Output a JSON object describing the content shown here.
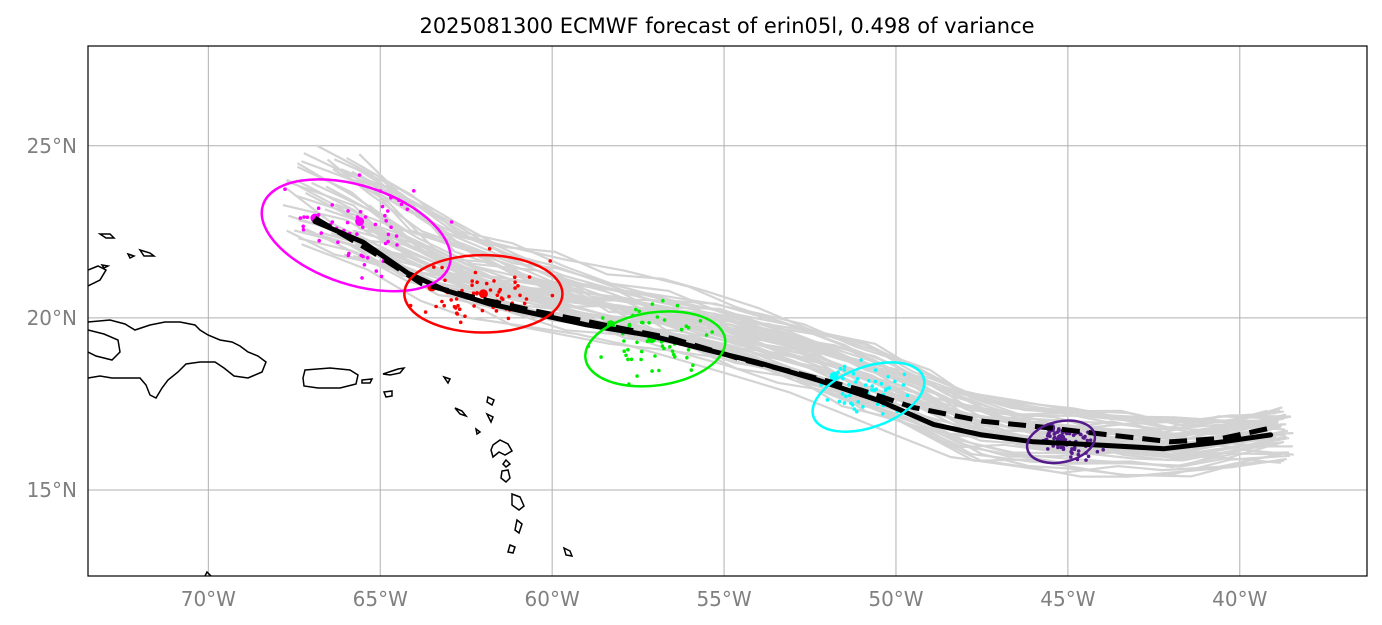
{
  "title": "2025081300 ECMWF forecast of erin05l, 0.498 of variance",
  "map": {
    "lon_range": [
      -73.5,
      -36.3
    ],
    "lat_range": [
      12.5,
      27.9
    ],
    "grid": true,
    "x_ticks": [
      {
        "lon": -70,
        "label": "70°W"
      },
      {
        "lon": -65,
        "label": "65°W"
      },
      {
        "lon": -60,
        "label": "60°W"
      },
      {
        "lon": -55,
        "label": "55°W"
      },
      {
        "lon": -50,
        "label": "50°W"
      },
      {
        "lon": -45,
        "label": "45°W"
      },
      {
        "lon": -40,
        "label": "40°W"
      }
    ],
    "y_ticks": [
      {
        "lat": 15,
        "label": "15°N"
      },
      {
        "lat": 20,
        "label": "20°N"
      },
      {
        "lat": 25,
        "label": "25°N"
      }
    ],
    "colors": {
      "ensemble": "#d3d3d3",
      "grid": "#b0b0b0",
      "mean_track": "#000000",
      "coast": "#000000"
    }
  },
  "chart_data": {
    "type": "track-map",
    "solid_track": [
      [
        -66.9,
        22.8
      ],
      [
        -65.5,
        22.2
      ],
      [
        -64.2,
        21.3
      ],
      [
        -63.1,
        20.8
      ],
      [
        -61.8,
        20.4
      ],
      [
        -60.4,
        20.1
      ],
      [
        -59,
        19.8
      ],
      [
        -57.2,
        19.5
      ],
      [
        -55.6,
        19.1
      ],
      [
        -54,
        18.7
      ],
      [
        -52.3,
        18.2
      ],
      [
        -50.5,
        17.6
      ],
      [
        -48.9,
        16.9
      ],
      [
        -47.5,
        16.6
      ],
      [
        -46,
        16.4
      ],
      [
        -44,
        16.3
      ],
      [
        -42.2,
        16.2
      ],
      [
        -40.5,
        16.4
      ],
      [
        -39.1,
        16.6
      ]
    ],
    "dashed_track": [
      [
        -66.9,
        22.9
      ],
      [
        -65.2,
        21.9
      ],
      [
        -63.8,
        21
      ],
      [
        -62.3,
        20.6
      ],
      [
        -60.5,
        20.2
      ],
      [
        -58.5,
        19.8
      ],
      [
        -56.5,
        19.4
      ],
      [
        -54.5,
        18.8
      ],
      [
        -52.5,
        18.3
      ],
      [
        -51,
        17.9
      ],
      [
        -49.5,
        17.4
      ],
      [
        -47.5,
        17
      ],
      [
        -45.5,
        16.8
      ],
      [
        -43.8,
        16.6
      ],
      [
        -42,
        16.4
      ],
      [
        -40.5,
        16.5
      ],
      [
        -39.1,
        16.8
      ]
    ],
    "ellipses": [
      {
        "color": "#ff00ff",
        "center": [
          -65.7,
          22.4
        ],
        "radii": [
          5.7,
          2.3
        ],
        "angle": 18
      },
      {
        "color": "#ff0000",
        "center": [
          -62.0,
          20.7
        ],
        "radii": [
          4.6,
          1.8
        ],
        "angle": 0
      },
      {
        "color": "#00ee00",
        "center": [
          -57.0,
          19.1
        ],
        "radii": [
          4.1,
          1.7
        ],
        "angle": -8
      },
      {
        "color": "#00ffff",
        "center": [
          -50.8,
          17.7
        ],
        "radii": [
          3.4,
          1.4
        ],
        "angle": -20
      },
      {
        "color": "#551a8b",
        "center": [
          -45.2,
          16.4
        ],
        "radii": [
          2.0,
          0.95
        ],
        "angle": -12
      }
    ],
    "clusters": [
      {
        "color": "#ff00ff",
        "center": [
          -65.5,
          22.6
        ],
        "spread": [
          1.8,
          1.1
        ],
        "count": 55,
        "seed": 3,
        "mean_dots": [
          [
            -66.9,
            22.9
          ],
          [
            -65.6,
            22.8
          ]
        ]
      },
      {
        "color": "#ff0000",
        "center": [
          -62.0,
          20.7
        ],
        "spread": [
          1.4,
          0.8
        ],
        "count": 60,
        "seed": 11,
        "mean_dots": [
          [
            -63.5,
            20.9
          ],
          [
            -62.0,
            20.7
          ]
        ]
      },
      {
        "color": "#00ee00",
        "center": [
          -57.0,
          19.3
        ],
        "spread": [
          1.2,
          0.8
        ],
        "count": 55,
        "seed": 23,
        "mean_dots": [
          [
            -58.3,
            19.8
          ],
          [
            -57.1,
            19.4
          ]
        ]
      },
      {
        "color": "#00ffff",
        "center": [
          -50.9,
          17.9
        ],
        "spread": [
          0.9,
          0.6
        ],
        "count": 50,
        "seed": 37,
        "mean_dots": [
          [
            -51.8,
            18.3
          ],
          [
            -50.9,
            17.8
          ]
        ]
      },
      {
        "color": "#551a8b",
        "center": [
          -45.3,
          16.5
        ],
        "spread": [
          0.45,
          0.35
        ],
        "count": 55,
        "seed": 51,
        "mean_dots": [
          [
            -45.5,
            16.8
          ],
          [
            -45.2,
            16.5
          ]
        ]
      },
      {
        "color": "#551a8b",
        "center": [
          -44.5,
          16.2
        ],
        "spread": [
          0.4,
          0.4
        ],
        "count": 25,
        "seed": 67,
        "mean_dots": []
      }
    ],
    "ensemble": {
      "count": 50,
      "seed": 97
    }
  }
}
